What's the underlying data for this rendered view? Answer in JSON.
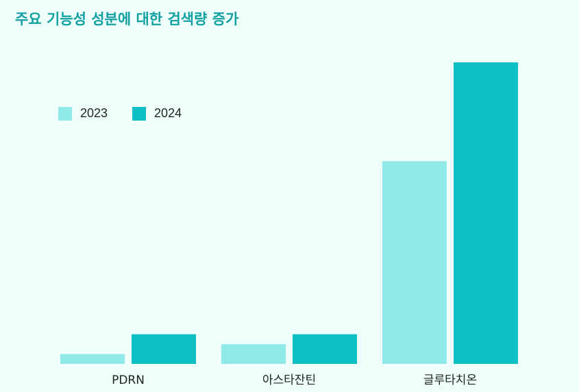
{
  "chart_data": {
    "type": "bar",
    "title": "주요 기능성 성분에 대한 검색량 증가",
    "categories": [
      "PDRN",
      "아스타잔틴",
      "글루타치온"
    ],
    "series": [
      {
        "name": "2023",
        "color": "#91e8e8",
        "values": [
          4,
          8,
          82
        ]
      },
      {
        "name": "2024",
        "color": "#0ebfc4",
        "values": [
          12,
          12,
          122
        ]
      }
    ],
    "xlabel": "",
    "ylabel": "",
    "ylim": [
      0,
      122
    ],
    "grid": false,
    "legend_position": "top-left"
  }
}
